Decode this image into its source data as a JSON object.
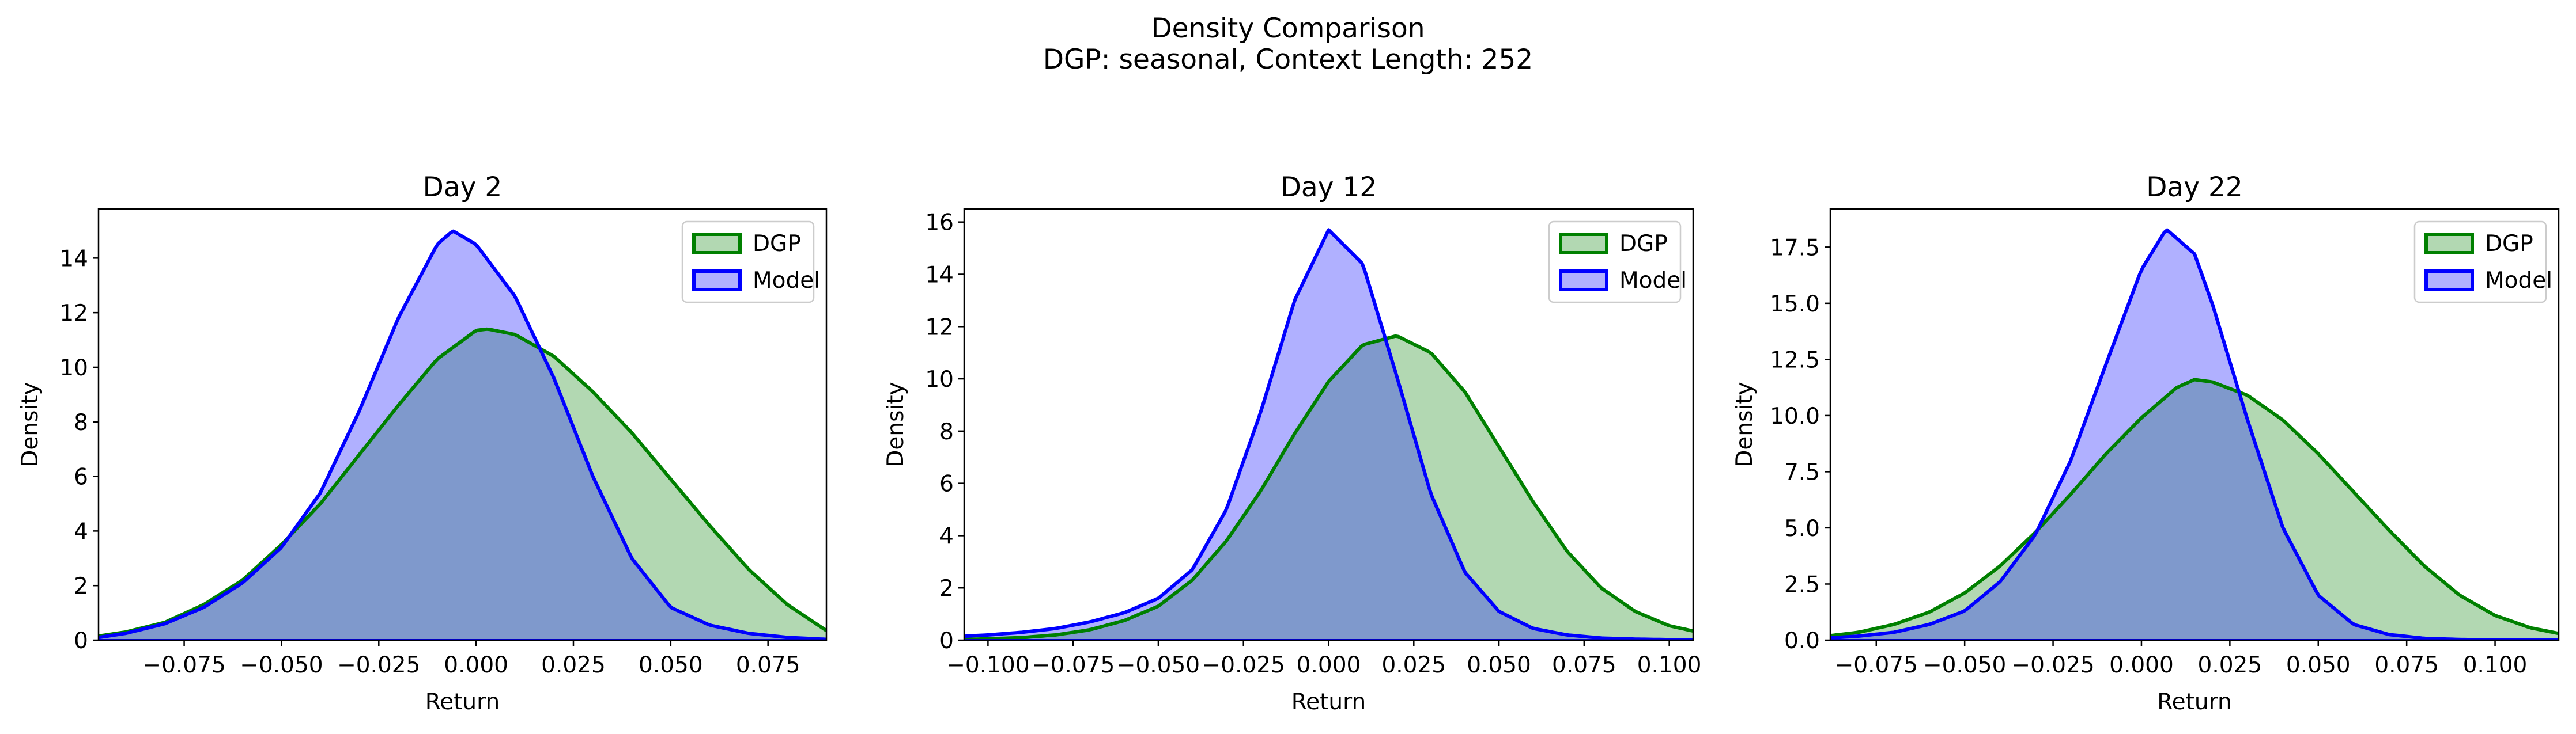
{
  "figure": {
    "title": "Density Comparison",
    "subtitle": "DGP: seasonal, Context Length: 252"
  },
  "colors": {
    "dgp_line": "#008000",
    "dgp_fill": "#b2d8b2",
    "model_line": "#0000ff",
    "model_fill": "#b0b0ff",
    "overlap_fill": "#7f99cc"
  },
  "chart_data": [
    {
      "type": "area",
      "title": "Day 2",
      "xlabel": "Return",
      "ylabel": "Density",
      "xlim": [
        -0.097,
        0.09
      ],
      "ylim": [
        0,
        15.8
      ],
      "xticks": [
        -0.075,
        -0.05,
        -0.025,
        0.0,
        0.025,
        0.05,
        0.075
      ],
      "xticklabels": [
        "−0.075",
        "−0.050",
        "−0.025",
        "0.000",
        "0.025",
        "0.050",
        "0.075"
      ],
      "yticks": [
        0,
        2,
        4,
        6,
        8,
        10,
        12,
        14
      ],
      "yticklabels": [
        "0",
        "2",
        "4",
        "6",
        "8",
        "10",
        "12",
        "14"
      ],
      "legend": "top-right",
      "series": [
        {
          "name": "DGP",
          "x": [
            -0.097,
            -0.09,
            -0.08,
            -0.07,
            -0.06,
            -0.05,
            -0.04,
            -0.03,
            -0.02,
            -0.01,
            0.0,
            0.003,
            0.01,
            0.02,
            0.03,
            0.04,
            0.05,
            0.06,
            0.07,
            0.08,
            0.09
          ],
          "y": [
            0.15,
            0.3,
            0.65,
            1.3,
            2.2,
            3.5,
            5.0,
            6.8,
            8.6,
            10.3,
            11.35,
            11.4,
            11.2,
            10.4,
            9.1,
            7.6,
            5.9,
            4.2,
            2.6,
            1.3,
            0.35
          ]
        },
        {
          "name": "Model",
          "x": [
            -0.097,
            -0.09,
            -0.08,
            -0.07,
            -0.06,
            -0.05,
            -0.04,
            -0.03,
            -0.02,
            -0.01,
            -0.006,
            0.0,
            0.01,
            0.02,
            0.03,
            0.04,
            0.05,
            0.06,
            0.07,
            0.08,
            0.09
          ],
          "y": [
            0.1,
            0.25,
            0.6,
            1.2,
            2.1,
            3.4,
            5.4,
            8.4,
            11.8,
            14.5,
            15.0,
            14.5,
            12.6,
            9.6,
            6.0,
            3.0,
            1.2,
            0.55,
            0.25,
            0.1,
            0.03
          ]
        }
      ]
    },
    {
      "type": "area",
      "title": "Day 12",
      "xlabel": "Return",
      "ylabel": "Density",
      "xlim": [
        -0.107,
        0.107
      ],
      "ylim": [
        0,
        16.5
      ],
      "xticks": [
        -0.1,
        -0.075,
        -0.05,
        -0.025,
        0.0,
        0.025,
        0.05,
        0.075,
        0.1
      ],
      "xticklabels": [
        "−0.100",
        "−0.075",
        "−0.050",
        "−0.025",
        "0.000",
        "0.025",
        "0.050",
        "0.075",
        "0.100"
      ],
      "yticks": [
        0,
        2,
        4,
        6,
        8,
        10,
        12,
        14,
        16
      ],
      "yticklabels": [
        "0",
        "2",
        "4",
        "6",
        "8",
        "10",
        "12",
        "14",
        "16"
      ],
      "legend": "top-right",
      "series": [
        {
          "name": "DGP",
          "x": [
            -0.107,
            -0.1,
            -0.09,
            -0.08,
            -0.07,
            -0.06,
            -0.05,
            -0.04,
            -0.03,
            -0.02,
            -0.01,
            0.0,
            0.01,
            0.02,
            0.03,
            0.04,
            0.05,
            0.06,
            0.07,
            0.08,
            0.09,
            0.1,
            0.107
          ],
          "y": [
            0.03,
            0.05,
            0.1,
            0.2,
            0.4,
            0.75,
            1.3,
            2.3,
            3.8,
            5.7,
            7.9,
            9.9,
            11.3,
            11.65,
            11.0,
            9.5,
            7.4,
            5.3,
            3.4,
            2.0,
            1.1,
            0.55,
            0.35
          ]
        },
        {
          "name": "Model",
          "x": [
            -0.107,
            -0.1,
            -0.09,
            -0.08,
            -0.07,
            -0.06,
            -0.05,
            -0.04,
            -0.03,
            -0.02,
            -0.01,
            0.0,
            0.01,
            0.02,
            0.03,
            0.04,
            0.05,
            0.06,
            0.07,
            0.08,
            0.09,
            0.1,
            0.107
          ],
          "y": [
            0.15,
            0.2,
            0.3,
            0.45,
            0.7,
            1.05,
            1.6,
            2.7,
            5.0,
            8.7,
            13.0,
            15.7,
            14.4,
            10.1,
            5.6,
            2.6,
            1.1,
            0.45,
            0.2,
            0.08,
            0.04,
            0.02,
            0.01
          ]
        }
      ]
    },
    {
      "type": "area",
      "title": "Day 22",
      "xlabel": "Return",
      "ylabel": "Density",
      "xlim": [
        -0.088,
        0.118
      ],
      "ylim": [
        0,
        19.2
      ],
      "xticks": [
        -0.075,
        -0.05,
        -0.025,
        0.0,
        0.025,
        0.05,
        0.075,
        0.1
      ],
      "xticklabels": [
        "−0.075",
        "−0.050",
        "−0.025",
        "0.000",
        "0.025",
        "0.050",
        "0.075",
        "0.100"
      ],
      "yticks": [
        0,
        2.5,
        5.0,
        7.5,
        10.0,
        12.5,
        15.0,
        17.5
      ],
      "yticklabels": [
        "0.0",
        "2.5",
        "5.0",
        "7.5",
        "10.0",
        "12.5",
        "15.0",
        "17.5"
      ],
      "legend": "top-right",
      "series": [
        {
          "name": "DGP",
          "x": [
            -0.088,
            -0.08,
            -0.07,
            -0.06,
            -0.05,
            -0.04,
            -0.03,
            -0.02,
            -0.01,
            0.0,
            0.01,
            0.015,
            0.02,
            0.03,
            0.04,
            0.05,
            0.06,
            0.07,
            0.08,
            0.09,
            0.1,
            0.11,
            0.118
          ],
          "y": [
            0.2,
            0.35,
            0.7,
            1.25,
            2.1,
            3.3,
            4.8,
            6.5,
            8.3,
            9.9,
            11.25,
            11.6,
            11.5,
            10.9,
            9.8,
            8.3,
            6.6,
            4.9,
            3.3,
            2.0,
            1.1,
            0.55,
            0.3
          ]
        },
        {
          "name": "Model",
          "x": [
            -0.088,
            -0.08,
            -0.07,
            -0.06,
            -0.05,
            -0.04,
            -0.03,
            -0.02,
            -0.01,
            0.0,
            0.007,
            0.015,
            0.02,
            0.03,
            0.04,
            0.05,
            0.06,
            0.07,
            0.08,
            0.09,
            0.1,
            0.11,
            0.118
          ],
          "y": [
            0.1,
            0.18,
            0.35,
            0.7,
            1.3,
            2.6,
            4.7,
            8.0,
            12.3,
            16.5,
            18.3,
            17.2,
            15.0,
            9.8,
            5.0,
            2.0,
            0.7,
            0.25,
            0.08,
            0.03,
            0.01,
            0.0,
            0.0
          ]
        }
      ]
    }
  ]
}
